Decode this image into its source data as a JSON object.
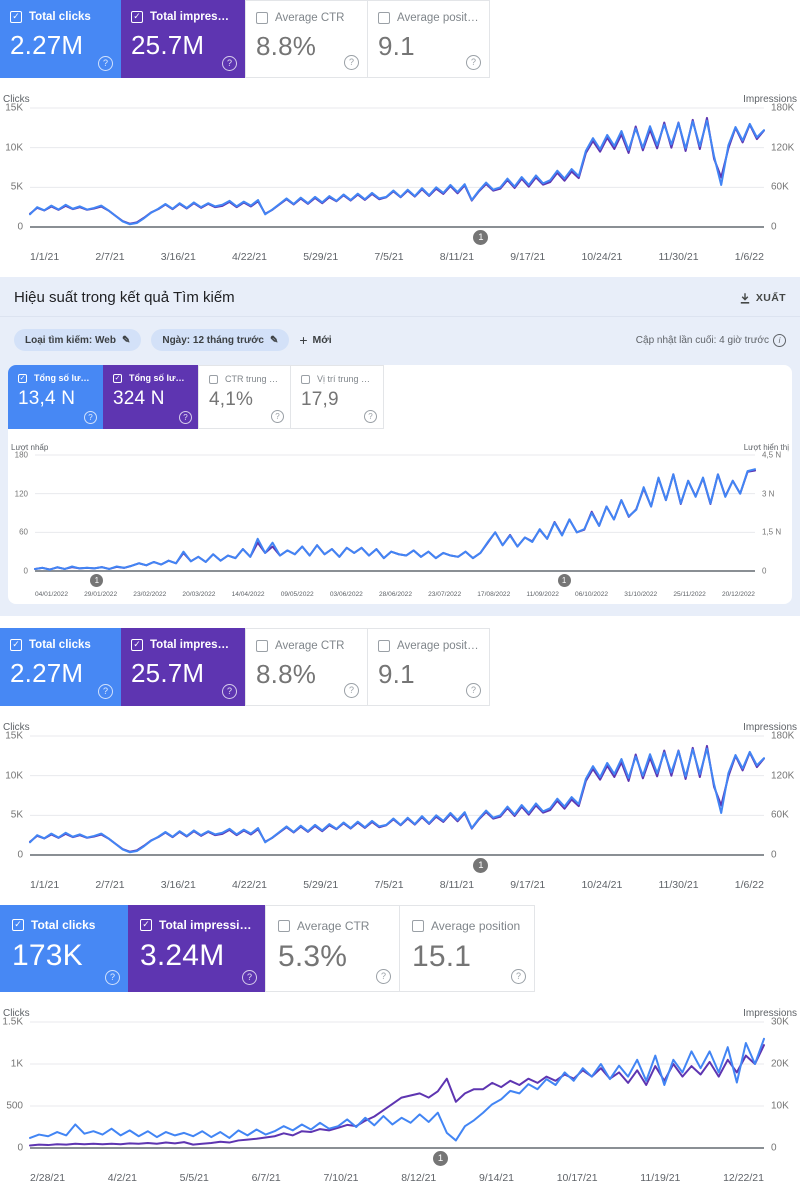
{
  "icons": {
    "check": "✓",
    "edit": "✎",
    "plus": "+",
    "help": "?",
    "info": "i"
  },
  "colors": {
    "card_blue": "#4788f4",
    "card_purple": "#5e35b1",
    "line_blue": "#4285f4",
    "line_purple": "#5e35b1"
  },
  "sections": {
    "s1": {
      "cards": [
        {
          "label": "Total clicks",
          "value": "2.27M"
        },
        {
          "label": "Total impressions",
          "value": "25.7M"
        },
        {
          "label": "Average CTR",
          "value": "8.8%"
        },
        {
          "label": "Average position",
          "value": "9.1"
        }
      ]
    },
    "s2": {
      "title": "Hiệu suất trong kết quả Tìm kiếm",
      "export_label": "XUẤT",
      "chips": [
        "Loại tìm kiếm: Web",
        "Ngày: 12 tháng trước"
      ],
      "new_label": "Mới",
      "updated_label": "Cập nhật lần cuối: 4 giờ trước",
      "cards": [
        {
          "label": "Tổng số lượt nhấp",
          "value": "13,4 N"
        },
        {
          "label": "Tổng số lượt hiển thị",
          "value": "324 N"
        },
        {
          "label": "CTR trung bình",
          "value": "4,1%"
        },
        {
          "label": "Vị trí trung bình",
          "value": "17,9"
        }
      ]
    },
    "s3": {
      "cards": [
        {
          "label": "Total clicks",
          "value": "2.27M"
        },
        {
          "label": "Total impressions",
          "value": "25.7M"
        },
        {
          "label": "Average CTR",
          "value": "8.8%"
        },
        {
          "label": "Average position",
          "value": "9.1"
        }
      ]
    },
    "s4": {
      "cards": [
        {
          "label": "Total clicks",
          "value": "173K"
        },
        {
          "label": "Total impressions",
          "value": "3.24M"
        },
        {
          "label": "Average CTR",
          "value": "5.3%"
        },
        {
          "label": "Average position",
          "value": "15.1"
        }
      ]
    }
  },
  "chart_data": {
    "chart_a": {
      "type": "line",
      "left_axis": {
        "label": "Clicks",
        "ticks": [
          "15K",
          "10K",
          "5K",
          "0"
        ],
        "max": 15
      },
      "right_axis": {
        "label": "Impressions",
        "ticks": [
          "180K",
          "120K",
          "60K",
          "0"
        ],
        "max": 180
      },
      "x_ticks": [
        "1/1/21",
        "2/7/21",
        "3/16/21",
        "4/22/21",
        "5/29/21",
        "7/5/21",
        "8/11/21",
        "9/17/21",
        "10/24/21",
        "11/30/21",
        "1/6/22"
      ],
      "markers": [
        {
          "label": "1",
          "pos": 0.615
        }
      ],
      "series": [
        {
          "name": "Clicks",
          "axis": "left",
          "color": "#4285f4",
          "values": [
            1.6,
            2.5,
            2.1,
            2.7,
            2.2,
            2.8,
            2.3,
            2.6,
            2.2,
            2.4,
            2.7,
            2.1,
            1.4,
            0.7,
            0.35,
            0.5,
            1.1,
            1.8,
            2.3,
            2.9,
            2.3,
            3.0,
            2.4,
            3.1,
            2.5,
            3.0,
            2.6,
            2.8,
            3.3,
            2.6,
            3.2,
            2.7,
            3.4,
            1.6,
            2.2,
            2.9,
            3.6,
            2.9,
            3.7,
            3.0,
            3.8,
            3.1,
            3.9,
            3.3,
            4.1,
            3.4,
            4.2,
            3.5,
            4.3,
            3.6,
            3.8,
            4.6,
            3.8,
            4.7,
            3.9,
            4.9,
            4.0,
            5.0,
            4.3,
            5.3,
            4.4,
            5.4,
            3.4,
            4.6,
            5.6,
            4.7,
            5.0,
            6.1,
            5.1,
            6.3,
            5.3,
            6.5,
            5.5,
            5.9,
            7.1,
            6.1,
            7.3,
            6.4,
            9.6,
            11.2,
            9.8,
            11.6,
            10.2,
            12.1,
            9.7,
            12.4,
            10.0,
            12.7,
            10.3,
            12.9,
            10.4,
            13.1,
            9.9,
            13.3,
            10.2,
            13.4,
            8.9,
            5.3,
            10.3,
            12.6,
            10.9,
            13.0,
            11.3,
            12.2
          ]
        },
        {
          "name": "Impressions",
          "axis": "right",
          "color": "#5e35b1",
          "values": [
            20,
            29,
            25,
            31,
            26,
            32,
            27,
            30,
            26,
            28,
            31,
            25,
            17,
            9,
            5,
            7,
            14,
            22,
            27,
            34,
            27,
            35,
            28,
            36,
            29,
            35,
            30,
            32,
            38,
            30,
            37,
            31,
            39,
            20,
            26,
            34,
            42,
            34,
            43,
            35,
            44,
            36,
            45,
            39,
            48,
            40,
            49,
            41,
            50,
            42,
            45,
            54,
            45,
            55,
            46,
            57,
            47,
            58,
            50,
            62,
            51,
            63,
            40,
            54,
            65,
            55,
            58,
            71,
            59,
            73,
            61,
            75,
            64,
            68,
            82,
            70,
            84,
            74,
            112,
            130,
            114,
            135,
            118,
            140,
            112,
            152,
            116,
            147,
            119,
            158,
            120,
            158,
            115,
            162,
            118,
            165,
            103,
            75,
            119,
            150,
            128,
            155,
            133,
            146
          ]
        }
      ]
    },
    "chart_b": {
      "type": "line",
      "left_axis": {
        "label": "Lượt nhấp",
        "ticks": [
          "180",
          "120",
          "60",
          "0"
        ],
        "max": 180
      },
      "right_axis": {
        "label": "Lượt hiển thị",
        "ticks": [
          "4,5 N",
          "3 N",
          "1,5 N",
          "0"
        ],
        "max": 4.5
      },
      "x_ticks": [
        "04/01/2022",
        "29/01/2022",
        "23/02/2022",
        "20/03/2022",
        "14/04/2022",
        "09/05/2022",
        "03/06/2022",
        "28/06/2022",
        "23/07/2022",
        "17/08/2022",
        "11/09/2022",
        "06/10/2022",
        "31/10/2022",
        "25/11/2022",
        "20/12/2022"
      ],
      "markers": [
        {
          "label": "1",
          "pos": 0.088
        },
        {
          "label": "1",
          "pos": 0.737
        }
      ],
      "series": [
        {
          "name": "Lượt nhấp",
          "axis": "left",
          "color": "#4285f4",
          "values": [
            3,
            5,
            2,
            6,
            3,
            7,
            4,
            5,
            4,
            6,
            3,
            7,
            5,
            8,
            12,
            9,
            14,
            10,
            16,
            12,
            30,
            15,
            22,
            14,
            26,
            16,
            24,
            20,
            34,
            22,
            50,
            28,
            44,
            24,
            32,
            26,
            38,
            24,
            40,
            26,
            34,
            22,
            36,
            28,
            36,
            24,
            34,
            20,
            30,
            26,
            24,
            32,
            22,
            30,
            20,
            28,
            24,
            22,
            30,
            20,
            28,
            45,
            60,
            40,
            55,
            38,
            52,
            45,
            65,
            50,
            75,
            55,
            80,
            60,
            65,
            90,
            70,
            100,
            80,
            110,
            85,
            95,
            130,
            100,
            145,
            110,
            150,
            105,
            140,
            115,
            145,
            105,
            150,
            115,
            140,
            120,
            155,
            158
          ]
        },
        {
          "name": "Lượt hiển thị",
          "axis": "right",
          "color": "#5e35b1",
          "values": [
            0.08,
            0.12,
            0.06,
            0.14,
            0.08,
            0.15,
            0.1,
            0.12,
            0.1,
            0.15,
            0.08,
            0.16,
            0.12,
            0.2,
            0.3,
            0.22,
            0.35,
            0.25,
            0.4,
            0.3,
            0.7,
            0.38,
            0.55,
            0.35,
            0.65,
            0.4,
            0.6,
            0.5,
            0.85,
            0.55,
            1.1,
            0.7,
            0.95,
            0.6,
            0.8,
            0.65,
            0.95,
            0.6,
            1.0,
            0.65,
            0.85,
            0.55,
            0.9,
            0.7,
            0.9,
            0.6,
            0.85,
            0.5,
            0.75,
            0.65,
            0.6,
            0.8,
            0.55,
            0.75,
            0.5,
            0.7,
            0.6,
            0.55,
            0.75,
            0.5,
            0.7,
            1.1,
            1.5,
            1.0,
            1.4,
            0.95,
            1.3,
            1.15,
            1.6,
            1.25,
            1.9,
            1.4,
            2.0,
            1.5,
            1.6,
            2.3,
            1.75,
            2.5,
            2.0,
            2.75,
            2.1,
            2.4,
            3.2,
            2.5,
            3.6,
            2.75,
            3.75,
            2.6,
            3.5,
            2.9,
            3.6,
            2.6,
            3.75,
            2.9,
            3.5,
            3.0,
            3.85,
            3.9
          ]
        }
      ]
    },
    "chart_d": {
      "type": "line",
      "left_axis": {
        "label": "Clicks",
        "ticks": [
          "1.5K",
          "1K",
          "500",
          "0"
        ],
        "max": 1500
      },
      "right_axis": {
        "label": "Impressions",
        "ticks": [
          "30K",
          "20K",
          "10K",
          "0"
        ],
        "max": 30
      },
      "x_ticks": [
        "2/28/21",
        "4/2/21",
        "5/5/21",
        "6/7/21",
        "7/10/21",
        "8/12/21",
        "9/14/21",
        "10/17/21",
        "11/19/21",
        "12/22/21"
      ],
      "markers": [
        {
          "label": "1",
          "pos": 0.56
        }
      ],
      "series": [
        {
          "name": "Clicks",
          "axis": "left",
          "color": "#4285f4",
          "values": [
            120,
            160,
            140,
            190,
            150,
            280,
            170,
            200,
            160,
            230,
            150,
            210,
            140,
            200,
            130,
            190,
            150,
            180,
            140,
            200,
            130,
            190,
            120,
            210,
            150,
            220,
            160,
            200,
            260,
            210,
            280,
            220,
            300,
            230,
            260,
            340,
            250,
            360,
            270,
            380,
            280,
            360,
            300,
            400,
            310,
            420,
            180,
            90,
            260,
            330,
            420,
            520,
            580,
            680,
            650,
            760,
            700,
            820,
            750,
            900,
            800,
            950,
            850,
            1000,
            820,
            980,
            850,
            1050,
            800,
            1100,
            750,
            1050,
            900,
            1150,
            950,
            1150,
            900,
            1200,
            780,
            1250,
            1000,
            1300
          ]
        },
        {
          "name": "Impressions",
          "axis": "right",
          "color": "#5e35b1",
          "values": [
            0.6,
            0.8,
            0.7,
            0.9,
            0.8,
            1.0,
            0.9,
            1.0,
            0.9,
            1.0,
            0.9,
            1.1,
            1.0,
            1.2,
            1.0,
            1.3,
            1.1,
            1.4,
            0.8,
            1.0,
            1.2,
            1.5,
            1.3,
            1.8,
            2.0,
            2.2,
            2.5,
            2.8,
            3.5,
            3.0,
            4.0,
            3.8,
            4.5,
            4.2,
            4.8,
            5.5,
            5.2,
            6.5,
            7.5,
            9.0,
            10.5,
            12.0,
            12.5,
            13.0,
            12.0,
            13.5,
            16.5,
            11.0,
            13.0,
            14.0,
            14.0,
            15.5,
            14.5,
            16.0,
            15.0,
            16.5,
            15.5,
            17.0,
            16.0,
            17.5,
            16.5,
            18.5,
            17.0,
            19.0,
            16.5,
            18.0,
            15.5,
            18.5,
            15.0,
            19.5,
            16.0,
            20.0,
            17.0,
            19.5,
            17.5,
            20.5,
            17.0,
            21.0,
            18.0,
            22.0,
            20.0,
            24.5
          ]
        }
      ]
    }
  }
}
